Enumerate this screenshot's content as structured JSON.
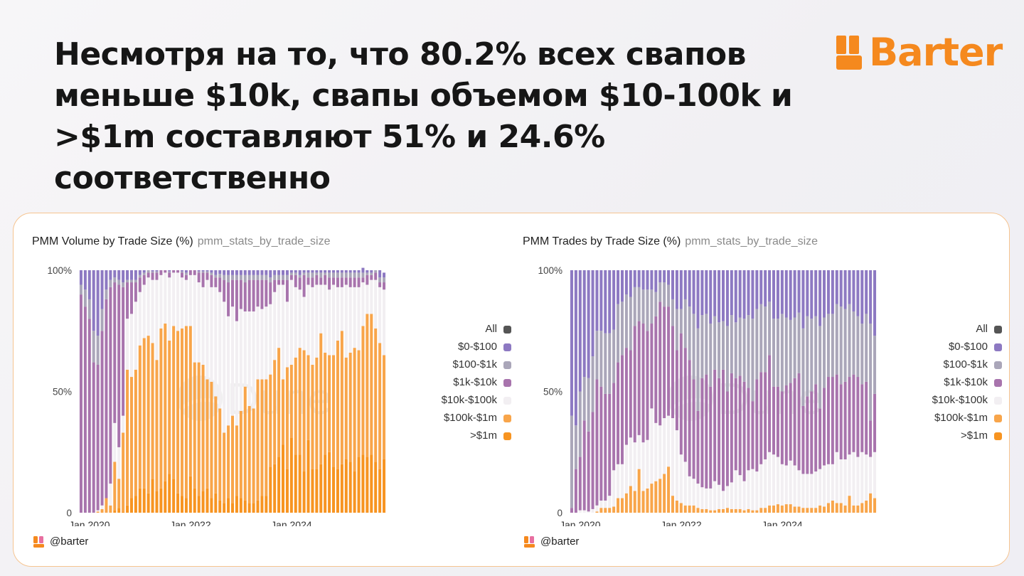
{
  "headline": "Несмотря на то, что 80.2% всех свапов меньше $10k, свапы объемом $10-100k и >$1m составляют 51% и 24.6% соответственно",
  "brand": {
    "name": "Barter",
    "color": "#f5891e",
    "icon": "barter-logo-icon"
  },
  "colors": {
    "card_border": "#f6c490",
    "all": "#555555",
    "b0": "#8d79c2",
    "b1": "#aaa6b9",
    "b2": "#a874ad",
    "b3": "#f2eff2",
    "b4": "#f8a54a",
    "b5": "#f79421"
  },
  "watermark": "Dune",
  "charts": [
    {
      "title": "PMM Volume by Trade Size (%)",
      "subtitle": "pmm_stats_by_trade_size",
      "handle": "@barter",
      "handle_icon": "barter-user-icon",
      "legend": [
        {
          "label": "All",
          "color_key": "all"
        },
        {
          "label": "$0-$100",
          "color_key": "b0"
        },
        {
          "label": "$100-$1k",
          "color_key": "b1"
        },
        {
          "label": "$1k-$10k",
          "color_key": "b2"
        },
        {
          "label": "$10k-$100k",
          "color_key": "b3"
        },
        {
          "label": "$100k-$1m",
          "color_key": "b4"
        },
        {
          "label": ">$1m",
          "color_key": "b5"
        }
      ]
    },
    {
      "title": "PMM Trades by Trade Size (%)",
      "subtitle": "pmm_stats_by_trade_size",
      "handle": "@barter",
      "handle_icon": "barter-user-icon",
      "legend": [
        {
          "label": "All",
          "color_key": "all"
        },
        {
          "label": "$0-$100",
          "color_key": "b0"
        },
        {
          "label": "$100-$1k",
          "color_key": "b1"
        },
        {
          "label": "$1k-$10k",
          "color_key": "b2"
        },
        {
          "label": "$10k-$100k",
          "color_key": "b3"
        },
        {
          "label": "$100k-$1m",
          "color_key": "b4"
        },
        {
          "label": ">$1m",
          "color_key": "b5"
        }
      ]
    }
  ],
  "chart_data": [
    {
      "type": "bar",
      "stacked": true,
      "title": "PMM Volume by Trade Size (%)",
      "subtitle": "pmm_stats_by_trade_size",
      "y_ticks": [
        "0",
        "50%",
        "100%"
      ],
      "ylim": [
        0,
        100
      ],
      "x_ticks": [
        {
          "label": "Jan 2020",
          "index": 2
        },
        {
          "label": "Jan 2022",
          "index": 26
        },
        {
          "label": "Jan 2024",
          "index": 50
        }
      ],
      "layers": [
        "b5",
        "b4",
        "b3",
        "b2",
        "b1",
        "b0"
      ],
      "series": [
        {
          "name": ">$1m",
          "color_key": "b5",
          "values": [
            0,
            0,
            0,
            0,
            0,
            0,
            0,
            0,
            1,
            2,
            0.5,
            3,
            6,
            7,
            10,
            10,
            8,
            14,
            9,
            10,
            13,
            16,
            14,
            8,
            7,
            6,
            15,
            10,
            7,
            9,
            10,
            6,
            8,
            5,
            4,
            6,
            4,
            7,
            6,
            5,
            4,
            4,
            5,
            7,
            7,
            19,
            20,
            23,
            28,
            18,
            31,
            24,
            24,
            17,
            30,
            18,
            18,
            20,
            24,
            25,
            19,
            18,
            20,
            22,
            21,
            17,
            23,
            24,
            23,
            24,
            21,
            18,
            22
          ]
        },
        {
          "name": "$100k-$1m",
          "color_key": "b4",
          "values": [
            0,
            0,
            0,
            0,
            0.5,
            1.5,
            6,
            3,
            20,
            12,
            32.5,
            56,
            50,
            52,
            59,
            62,
            65,
            56,
            54,
            66,
            65,
            55,
            63,
            67,
            69,
            71,
            62,
            52,
            55,
            52,
            45,
            48,
            40,
            38,
            29,
            30,
            36,
            29,
            36,
            47,
            40,
            39,
            50,
            48,
            48,
            38,
            43,
            45,
            27,
            42,
            30,
            40,
            44,
            50,
            35,
            43,
            46,
            54,
            42,
            40,
            46,
            53,
            55,
            42,
            45,
            51,
            44,
            53,
            59,
            58,
            55,
            52,
            43
          ]
        },
        {
          "name": "$10k-$100k",
          "color_key": "b3",
          "values": [
            0,
            0,
            0,
            0,
            0.5,
            1.5,
            0,
            9,
            16,
            13,
            7,
            21,
            26,
            28,
            22,
            22,
            24,
            26,
            33,
            22,
            21,
            26,
            22,
            24,
            21,
            19,
            21,
            36,
            33,
            32,
            41,
            39,
            45,
            48,
            54,
            45,
            45,
            43,
            42,
            31,
            39,
            40,
            30,
            29,
            30,
            29,
            28,
            26,
            39,
            27,
            35,
            29,
            24,
            22,
            29,
            32,
            30,
            20,
            28,
            27,
            29,
            22,
            18,
            30,
            27,
            25,
            26,
            18,
            12,
            14,
            20,
            23,
            27
          ]
        },
        {
          "name": "$1k-$10k",
          "color_key": "b2",
          "values": [
            90,
            85,
            80,
            62,
            60,
            72,
            82,
            81,
            58,
            67,
            53,
            15,
            13,
            8,
            6,
            4,
            2,
            3,
            3,
            2,
            1,
            2,
            1,
            1,
            2,
            2,
            2,
            2,
            4,
            6,
            3,
            5,
            4,
            6,
            9,
            14,
            11,
            17,
            12,
            12,
            13,
            13,
            11,
            12,
            11,
            9,
            5,
            2,
            2,
            9,
            2,
            5,
            5,
            9,
            3,
            4,
            4,
            3,
            4,
            5,
            3,
            4,
            4,
            3,
            4,
            4,
            4,
            2,
            4,
            2,
            3,
            2,
            3
          ]
        },
        {
          "name": "$100-$1k",
          "color_key": "b1",
          "values": [
            4,
            7,
            8,
            13,
            12,
            9,
            4,
            3,
            2,
            2,
            2,
            1,
            1,
            1,
            1,
            1,
            1,
            0.5,
            0.5,
            0,
            0,
            0.5,
            0,
            0,
            0.5,
            1,
            0,
            0,
            0.5,
            0.5,
            0.5,
            1,
            1,
            1.5,
            2,
            3,
            2,
            2,
            2,
            3,
            2,
            2,
            2,
            2,
            2,
            2,
            2,
            2,
            2,
            2,
            1,
            1,
            1,
            1,
            2,
            2,
            1,
            2,
            1,
            2,
            2,
            2,
            2,
            2,
            2,
            2,
            2,
            2,
            1,
            1,
            1,
            2,
            2
          ]
        },
        {
          "name": "$0-$100",
          "color_key": "b0",
          "values": [
            6,
            8,
            12,
            25,
            27,
            16,
            8,
            4,
            3,
            4,
            5,
            4,
            4,
            4,
            2,
            1,
            0,
            0.5,
            0.5,
            0,
            0,
            0.5,
            0,
            0,
            0.5,
            1,
            0,
            0,
            0.5,
            0.5,
            0.5,
            1,
            2,
            1.5,
            2,
            2,
            2,
            2,
            2,
            2,
            2,
            2,
            2,
            2,
            2,
            3,
            2,
            2,
            2,
            2,
            1,
            1,
            2,
            1,
            1,
            1,
            1,
            1,
            1,
            1,
            1,
            1,
            1,
            1,
            1,
            1,
            1,
            2,
            1,
            1,
            0,
            3,
            2
          ]
        }
      ]
    },
    {
      "type": "bar",
      "stacked": true,
      "title": "PMM Trades by Trade Size (%)",
      "subtitle": "pmm_stats_by_trade_size",
      "y_ticks": [
        "0",
        "50%",
        "100%"
      ],
      "ylim": [
        0,
        100
      ],
      "x_ticks": [
        {
          "label": "Jan 2020",
          "index": 2
        },
        {
          "label": "Jan 2022",
          "index": 26
        },
        {
          "label": "Jan 2024",
          "index": 50
        }
      ],
      "layers": [
        "b5",
        "b4",
        "b3",
        "b2",
        "b1",
        "b0"
      ],
      "series": [
        {
          "name": ">$1m",
          "color_key": "b5",
          "values": [
            0,
            0,
            0,
            0,
            0,
            0,
            0,
            0,
            0,
            0,
            0,
            0,
            0,
            0,
            0,
            0,
            0,
            0,
            0,
            0,
            0,
            0,
            0,
            0,
            0,
            0,
            0,
            0,
            0,
            0,
            0,
            0,
            0,
            0,
            0,
            0,
            0,
            0,
            0,
            0,
            0,
            0,
            0,
            0,
            0,
            0,
            0,
            0,
            0,
            0,
            0,
            0,
            0,
            0,
            0,
            0,
            0,
            0,
            0,
            0,
            0,
            0,
            0,
            0,
            0,
            0,
            0,
            0,
            0,
            0,
            0,
            0,
            0
          ]
        },
        {
          "name": "$100k-$1m",
          "color_key": "b4",
          "values": [
            0,
            0,
            0,
            0,
            0,
            0,
            0.5,
            2,
            2,
            2,
            2.5,
            6,
            6,
            8,
            11,
            9,
            18,
            9,
            10,
            12,
            13,
            14,
            16,
            19,
            7,
            5,
            4,
            3,
            3,
            3,
            2,
            1.5,
            1.5,
            1,
            1,
            1.5,
            1.5,
            2,
            1.5,
            1.5,
            1.5,
            1,
            1.5,
            1,
            1,
            2,
            2,
            3,
            3,
            3.5,
            3,
            3.5,
            3.5,
            2.5,
            2.5,
            2,
            2,
            2,
            2,
            3,
            2.5,
            4,
            5,
            4,
            4,
            3,
            7,
            3,
            3,
            4,
            5,
            8,
            6
          ]
        },
        {
          "name": "$10k-$100k",
          "color_key": "b3",
          "values": [
            0,
            0,
            1,
            1,
            0.5,
            1.5,
            2.5,
            3,
            3,
            5,
            15,
            14,
            14,
            20,
            20,
            20,
            14,
            20,
            20,
            31,
            24,
            22,
            23,
            21,
            32,
            29,
            20,
            18,
            12,
            11,
            10,
            9,
            8.5,
            9,
            12,
            10,
            7.5,
            9,
            11,
            16,
            14,
            12,
            16,
            17,
            16,
            18,
            20,
            22,
            21,
            19.5,
            17,
            16,
            18,
            17,
            15,
            14,
            14,
            14,
            15,
            15,
            17,
            16,
            15,
            21,
            18,
            19,
            17,
            22,
            20,
            21,
            19,
            15,
            19
          ]
        },
        {
          "name": "$1k-$10k",
          "color_key": "b2",
          "values": [
            2,
            18,
            22,
            37,
            33,
            40,
            52,
            47,
            44,
            42,
            36,
            42,
            45,
            40,
            36,
            48,
            47,
            49,
            45,
            35,
            44,
            51,
            46,
            45,
            38,
            33,
            50,
            47,
            48,
            41,
            30,
            45,
            47,
            42,
            46,
            44,
            50,
            39,
            45,
            38,
            41,
            41,
            34,
            28,
            38,
            38,
            36,
            40,
            28,
            29,
            30,
            33,
            32,
            36,
            40,
            28,
            32,
            34,
            36,
            25,
            32,
            36,
            36,
            32,
            31,
            32,
            32,
            32,
            33,
            28,
            30,
            15,
            24
          ]
        },
        {
          "name": "$100-$1k",
          "color_key": "b1",
          "values": [
            38,
            18,
            27,
            18,
            22,
            23,
            20,
            23,
            25,
            25,
            22,
            24,
            22,
            22,
            22,
            16,
            14,
            14,
            17,
            14,
            10,
            8,
            10,
            9,
            11,
            17,
            10,
            20,
            22,
            27,
            34,
            26,
            25,
            26,
            22,
            23,
            20,
            27,
            24,
            23,
            24,
            26,
            30,
            34,
            29,
            28,
            27,
            22,
            28,
            28,
            32,
            28,
            26,
            25,
            25,
            32,
            33,
            30,
            28,
            34,
            29,
            26,
            26,
            29,
            32,
            30,
            30,
            26,
            25,
            25,
            28,
            40,
            24
          ]
        },
        {
          "name": "$0-$100",
          "color_key": "b0",
          "values": [
            60,
            64,
            50,
            44,
            44.5,
            35.5,
            25,
            25,
            26,
            26,
            24.5,
            14,
            13,
            10,
            11,
            7,
            7,
            8,
            8,
            8,
            9,
            5,
            5,
            6,
            12,
            16,
            16,
            12,
            15,
            18,
            24,
            18.5,
            18,
            22,
            19,
            21.5,
            21,
            23,
            18.5,
            21.5,
            19.5,
            20,
            18.5,
            20,
            16,
            14,
            15,
            13,
            20,
            20,
            18,
            19.5,
            20.5,
            19.5,
            17.5,
            24,
            19,
            20,
            19,
            23,
            19.5,
            18,
            18,
            14,
            15,
            16,
            14,
            17,
            19,
            22,
            18,
            22,
            27
          ]
        }
      ]
    }
  ]
}
